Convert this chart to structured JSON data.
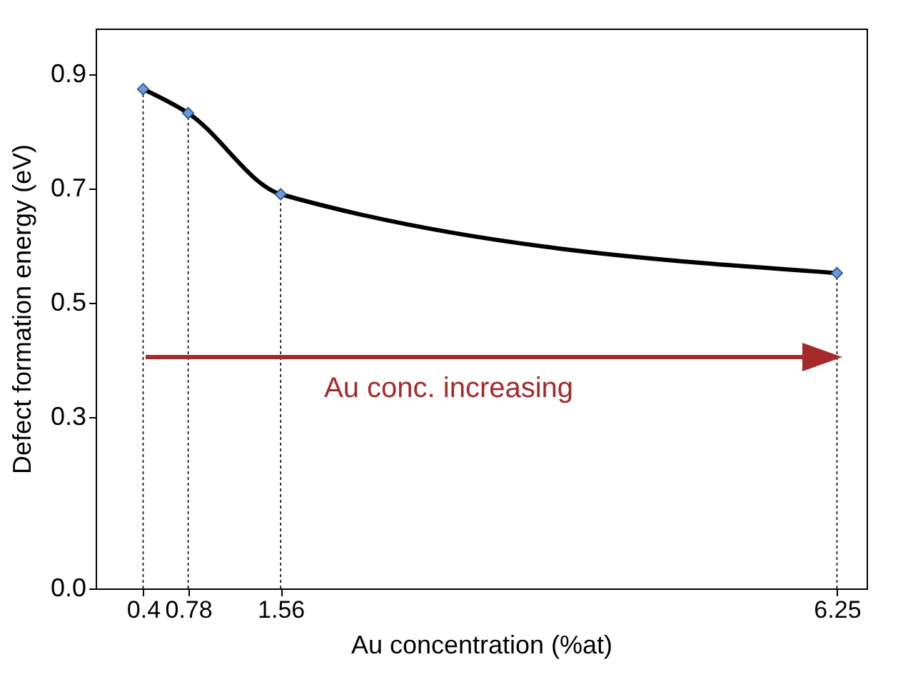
{
  "chart_data": {
    "type": "line",
    "xlabel": "Au concentration (%at)",
    "ylabel": "Defect formation energy (eV)",
    "x": [
      0.4,
      0.78,
      1.56,
      6.25
    ],
    "series": [
      {
        "color": "#000000",
        "colors": [
          "#6a9bd8",
          "#6a9bd8",
          "#6a9bd8",
          "#6a9bd8"
        ],
        "values": [
          0.874,
          0.832,
          0.69,
          0.552
        ]
      }
    ],
    "xlim": [
      0,
      6.5
    ],
    "xticks": [
      0.4,
      0.78,
      1.56,
      6.25
    ],
    "ylim": [
      0,
      0.98
    ],
    "yticks": [
      {
        "value": 0,
        "label": "0.0"
      },
      0.3,
      0.5,
      0.7,
      0.9
    ],
    "marker": "diamond",
    "grid": false,
    "ref_lines": [
      {
        "axis": "x",
        "value": 0.4,
        "line_style": "dotted"
      },
      {
        "axis": "x",
        "value": 0.78,
        "line_style": "dotted"
      },
      {
        "axis": "x",
        "value": 1.56,
        "line_style": "dotted"
      },
      {
        "axis": "x",
        "value": 6.25,
        "line_style": "dotted"
      }
    ],
    "annotations": [
      "Au conc. increasing"
    ]
  }
}
